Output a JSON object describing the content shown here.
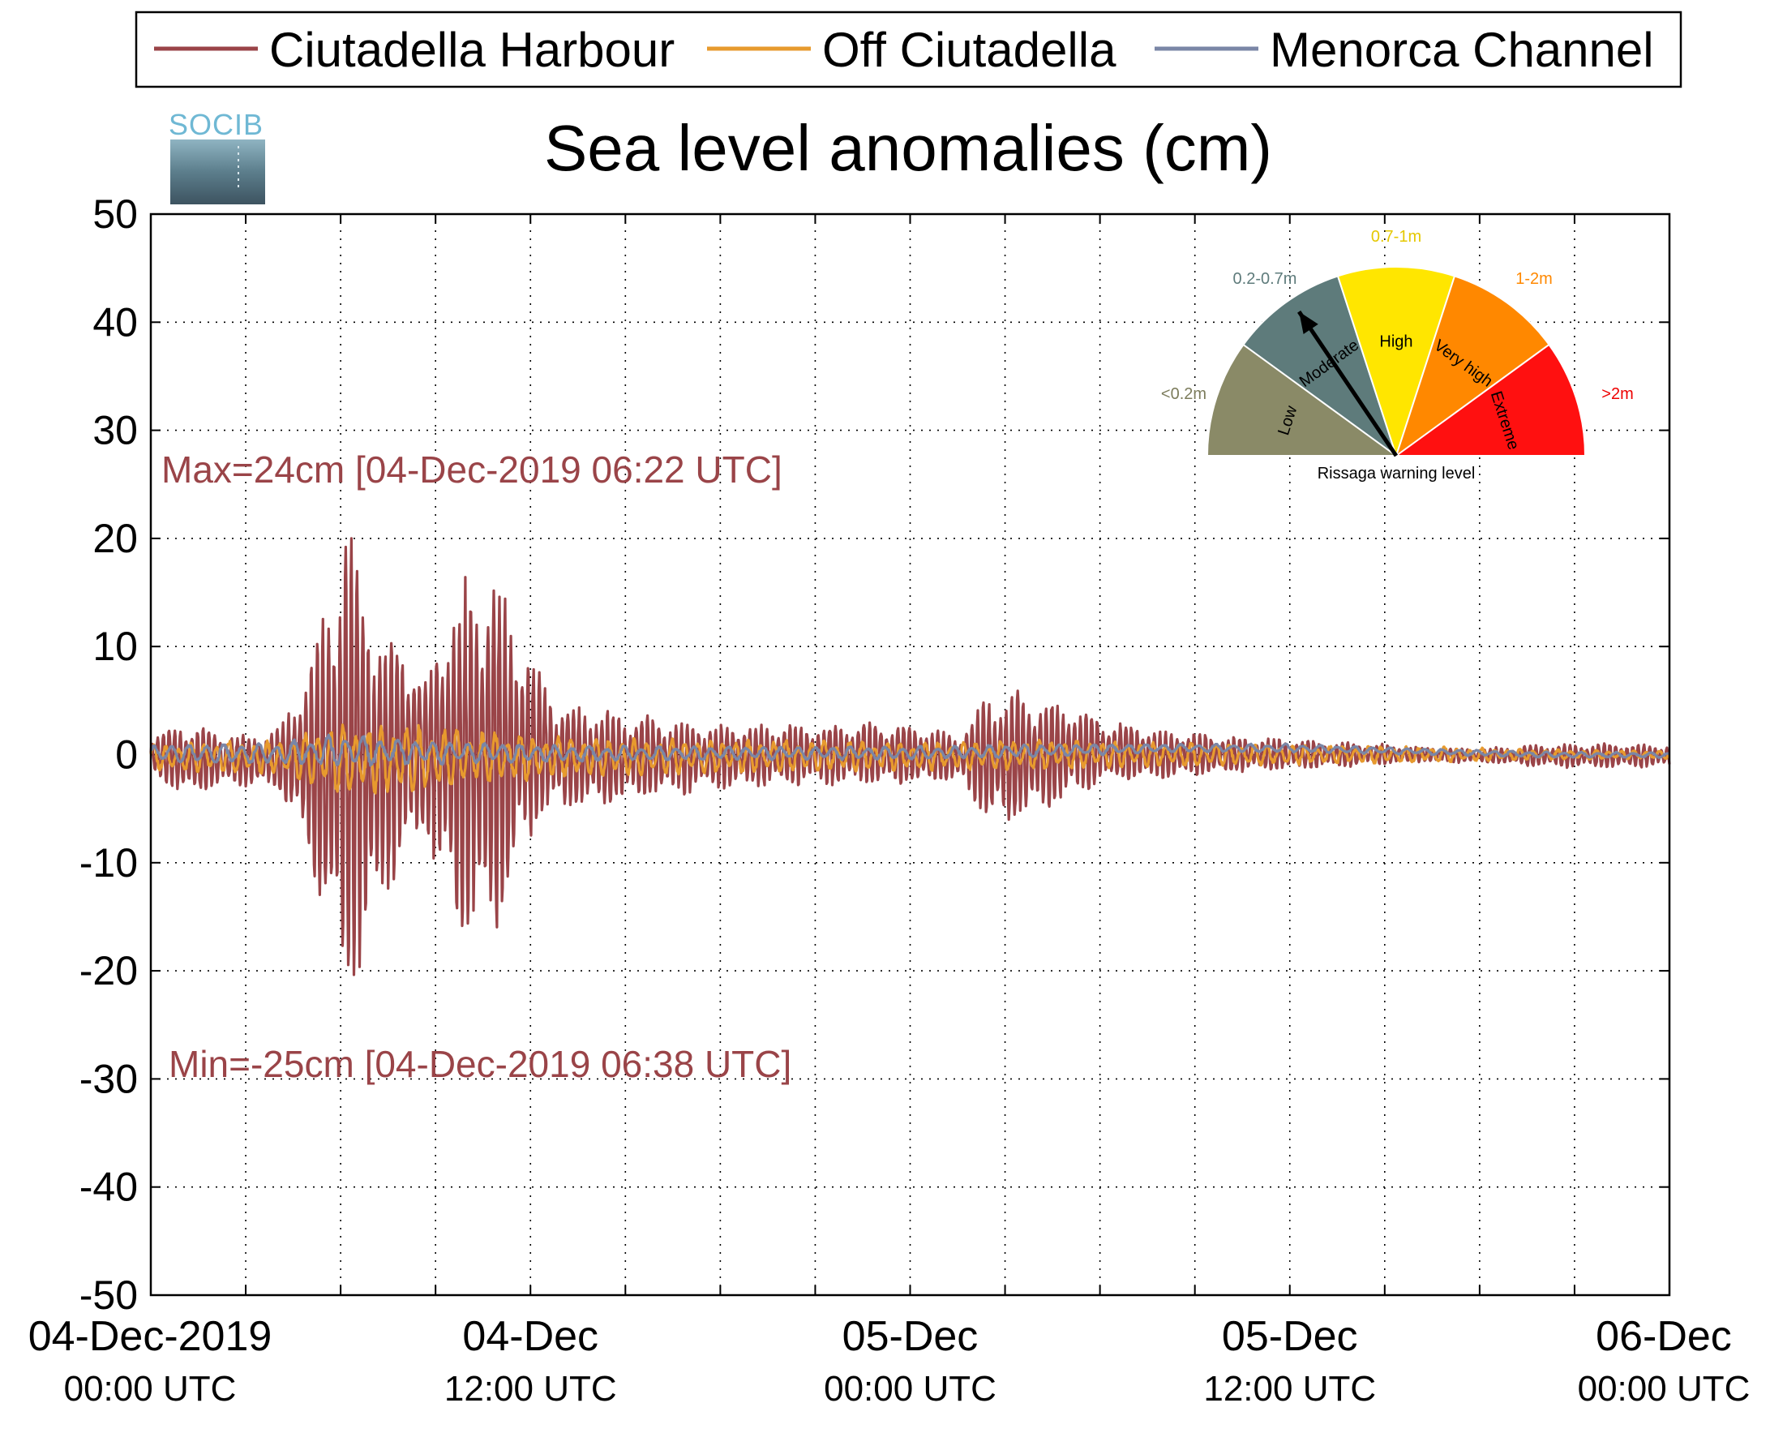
{
  "chart_data": {
    "type": "line",
    "title": "Sea level anomalies (cm)",
    "ylim": [
      -50,
      50
    ],
    "yticks": [
      "50",
      "40",
      "30",
      "20",
      "10",
      "0",
      "-10",
      "-20",
      "-30",
      "-40",
      "-50"
    ],
    "xlim": [
      "04-Dec-2019 00:00 UTC",
      "06-Dec-2019 00:00 UTC"
    ],
    "x_unit": "hours since 04-Dec-2019 00:00 UTC",
    "xticks": [
      {
        "line1": "04-Dec-2019",
        "line2": "00:00 UTC"
      },
      {
        "line1": "04-Dec",
        "line2": "12:00 UTC"
      },
      {
        "line1": "05-Dec",
        "line2": "00:00 UTC"
      },
      {
        "line1": "05-Dec",
        "line2": "12:00 UTC"
      },
      {
        "line1": "06-Dec",
        "line2": "00:00 UTC"
      }
    ],
    "grid": true,
    "legend_position": "top",
    "series": [
      {
        "name": "Ciutadella Harbour",
        "color": "#9a4448",
        "envelope_upper": [
          [
            0,
            2
          ],
          [
            1,
            3
          ],
          [
            2,
            2.5
          ],
          [
            3,
            2
          ],
          [
            4,
            2.5
          ],
          [
            5,
            9
          ],
          [
            6.2,
            23.5
          ],
          [
            6.8,
            18
          ],
          [
            7.4,
            12
          ],
          [
            8,
            13
          ],
          [
            8.6,
            7
          ],
          [
            9.4,
            15
          ],
          [
            10.3,
            18
          ],
          [
            11,
            17
          ],
          [
            11.5,
            13
          ],
          [
            12.3,
            8
          ],
          [
            13,
            5
          ],
          [
            14.5,
            4.5
          ],
          [
            16,
            3.5
          ],
          [
            18,
            3
          ],
          [
            20,
            3
          ],
          [
            22,
            3
          ],
          [
            24,
            3
          ],
          [
            25.5,
            2
          ],
          [
            26.5,
            6
          ],
          [
            27.5,
            6
          ],
          [
            29,
            5
          ],
          [
            30,
            3.5
          ],
          [
            32,
            2.5
          ],
          [
            34,
            1.8
          ],
          [
            36,
            1.5
          ],
          [
            38,
            1.2
          ],
          [
            40,
            0.8
          ],
          [
            42,
            0.6
          ],
          [
            44,
            1
          ],
          [
            46,
            1.1
          ],
          [
            48,
            1
          ]
        ],
        "envelope_lower": [
          [
            0,
            -2
          ],
          [
            1,
            -4
          ],
          [
            2,
            -3.5
          ],
          [
            3,
            -3
          ],
          [
            4,
            -3.5
          ],
          [
            5,
            -10
          ],
          [
            6.2,
            -25.3
          ],
          [
            6.8,
            -20
          ],
          [
            7.4,
            -14
          ],
          [
            8,
            -12
          ],
          [
            8.6,
            -7
          ],
          [
            9.4,
            -16
          ],
          [
            10.3,
            -19
          ],
          [
            11,
            -17
          ],
          [
            11.5,
            -12
          ],
          [
            12.3,
            -7
          ],
          [
            13,
            -5.5
          ],
          [
            14.5,
            -5
          ],
          [
            16,
            -4
          ],
          [
            18,
            -3.5
          ],
          [
            20,
            -3
          ],
          [
            22,
            -3
          ],
          [
            24,
            -3
          ],
          [
            25.5,
            -2.5
          ],
          [
            26.5,
            -7
          ],
          [
            27.5,
            -6.5
          ],
          [
            29,
            -4.5
          ],
          [
            30,
            -3
          ],
          [
            32,
            -2.5
          ],
          [
            34,
            -1.8
          ],
          [
            36,
            -1.5
          ],
          [
            38,
            -1.2
          ],
          [
            40,
            -0.8
          ],
          [
            42,
            -0.8
          ],
          [
            44,
            -1.2
          ],
          [
            46,
            -1.3
          ],
          [
            48,
            -1.2
          ]
        ]
      },
      {
        "name": "Off Ciutadella",
        "color": "#e79a2e",
        "envelope_upper": [
          [
            0,
            1
          ],
          [
            4,
            1.5
          ],
          [
            6,
            3
          ],
          [
            8,
            3
          ],
          [
            10,
            2.5
          ],
          [
            12,
            2
          ],
          [
            16,
            1.5
          ],
          [
            20,
            1.5
          ],
          [
            24,
            1.2
          ],
          [
            28,
            1.5
          ],
          [
            32,
            1.2
          ],
          [
            36,
            1
          ],
          [
            40,
            0.8
          ],
          [
            44,
            0.5
          ],
          [
            48,
            0.4
          ]
        ],
        "envelope_lower": [
          [
            0,
            -1.5
          ],
          [
            4,
            -2
          ],
          [
            6,
            -4
          ],
          [
            8,
            -4
          ],
          [
            10,
            -3
          ],
          [
            12,
            -2.5
          ],
          [
            16,
            -2
          ],
          [
            20,
            -1.8
          ],
          [
            24,
            -1.5
          ],
          [
            28,
            -1.5
          ],
          [
            32,
            -1.2
          ],
          [
            36,
            -1
          ],
          [
            40,
            -0.8
          ],
          [
            44,
            -0.5
          ],
          [
            48,
            -0.4
          ]
        ]
      },
      {
        "name": "Menorca Channel",
        "color": "#7a86a6",
        "envelope_upper": [
          [
            0,
            1
          ],
          [
            4,
            1.2
          ],
          [
            6,
            2
          ],
          [
            8,
            1.5
          ],
          [
            12,
            1
          ],
          [
            16,
            0.8
          ],
          [
            20,
            0.8
          ],
          [
            24,
            0.8
          ],
          [
            28,
            1
          ],
          [
            32,
            1
          ],
          [
            36,
            1
          ],
          [
            40,
            0.6
          ],
          [
            44,
            0.3
          ],
          [
            48,
            0.2
          ]
        ],
        "envelope_lower": [
          [
            0,
            -0.8
          ],
          [
            4,
            -1
          ],
          [
            6,
            -1.2
          ],
          [
            8,
            -1
          ],
          [
            12,
            -0.8
          ],
          [
            16,
            -0.6
          ],
          [
            20,
            -0.5
          ],
          [
            24,
            -0.5
          ],
          [
            28,
            -0.3
          ],
          [
            32,
            0.2
          ],
          [
            36,
            0.2
          ],
          [
            40,
            0
          ],
          [
            44,
            -0.3
          ],
          [
            48,
            -0.3
          ]
        ]
      }
    ],
    "annotations": [
      {
        "text": "Max=24cm [04-Dec-2019 06:22 UTC]",
        "color": "#9a4448"
      },
      {
        "text": "Min=-25cm [04-Dec-2019 06:38 UTC]",
        "color": "#9a4448"
      }
    ]
  },
  "gauge": {
    "caption": "Rissaga warning level",
    "needle_level": "Moderate",
    "segments": [
      {
        "label": "Low",
        "range": "<0.2m",
        "color": "#8a8a67",
        "range_color": "#7c7c5c"
      },
      {
        "label": "Moderate",
        "range": "0.2-0.7m",
        "color": "#5e7b7b",
        "range_color": "#5e7b7b"
      },
      {
        "label": "High",
        "range": "0.7-1m",
        "color": "#ffe600",
        "range_color": "#e5c800"
      },
      {
        "label": "Very high",
        "range": "1-2m",
        "color": "#ff8800",
        "range_color": "#ff8800"
      },
      {
        "label": "Extreme",
        "range": ">2m",
        "color": "#ff1010",
        "range_color": "#ee0000"
      }
    ]
  },
  "logo": {
    "text": "SOCIB",
    "color": "#6fb8d4"
  }
}
